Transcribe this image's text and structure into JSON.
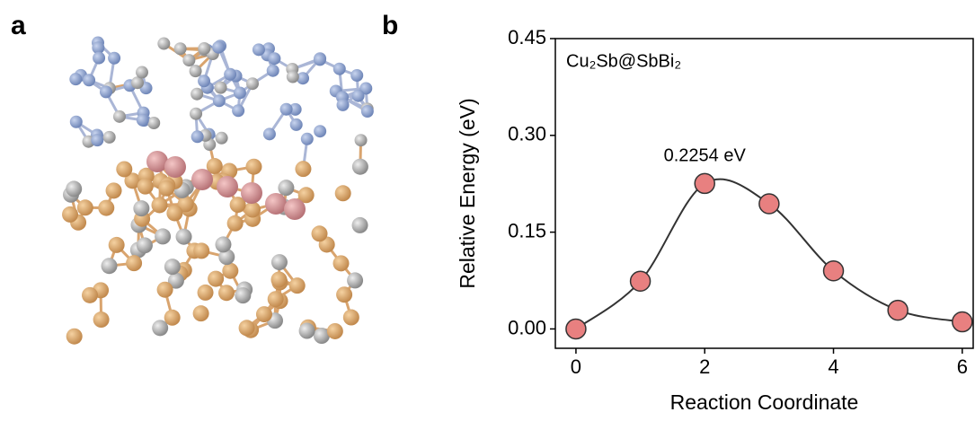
{
  "panels": [
    "a",
    "b"
  ],
  "chart_data": {
    "type": "line",
    "title": "Cu₂Sb@SbBi₂",
    "x_label": "Reaction Coordinate",
    "y_label": "Relative Energy (eV)",
    "x": [
      0,
      1,
      2,
      3,
      4,
      5,
      6
    ],
    "values": [
      0,
      0.074,
      0.2254,
      0.194,
      0.09,
      0.029,
      0.011
    ],
    "annotation": "0.2254 eV",
    "color": "#e88080",
    "line_color": "#333333",
    "xlim": [
      -0.32,
      6.17
    ],
    "ylim": [
      -0.03,
      0.45
    ],
    "xticks": [
      0,
      2,
      4,
      6
    ],
    "yticks": [
      {
        "value": 0,
        "label": "0.00"
      },
      {
        "value": 0.15,
        "label": "0.15"
      },
      {
        "value": 0.3,
        "label": "0.30"
      },
      {
        "value": 0.45,
        "label": "0.45"
      }
    ]
  }
}
